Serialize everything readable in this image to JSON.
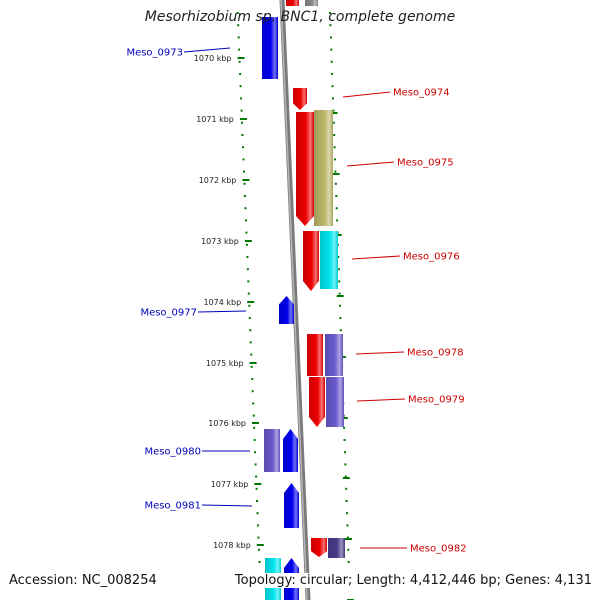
{
  "title": "Mesorhizobium sp. BNC1, complete genome",
  "footer": {
    "accession": "Accession: NC_008254",
    "summary": "Topology: circular; Length: 4,412,446 bp; Genes: 4,131"
  },
  "ruler": {
    "ticks": [
      "1070 kbp",
      "1071 kbp",
      "1072 kbp",
      "1073 kbp",
      "1074 kbp",
      "1075 kbp",
      "1076 kbp",
      "1077 kbp",
      "1078 kbp"
    ]
  },
  "colors": {
    "blue": "#0000ee",
    "red": "#ee0000",
    "khaki": "#bdb76b",
    "cyan": "#00e5ee",
    "slate": "#6a5acd",
    "navy": "#483d8b",
    "grey": "#888888",
    "ruler_green": "#007700",
    "left_label": "#0000bb",
    "right_label": "#cc0000"
  },
  "genes": [
    {
      "label": "Meso_0973",
      "side": "left"
    },
    {
      "label": "Meso_0974",
      "side": "right"
    },
    {
      "label": "Meso_0975",
      "side": "right"
    },
    {
      "label": "Meso_0976",
      "side": "right"
    },
    {
      "label": "Meso_0977",
      "side": "left"
    },
    {
      "label": "Meso_0978",
      "side": "right"
    },
    {
      "label": "Meso_0979",
      "side": "right"
    },
    {
      "label": "Meso_0980",
      "side": "left"
    },
    {
      "label": "Meso_0981",
      "side": "left"
    },
    {
      "label": "Meso_0982",
      "side": "right"
    }
  ]
}
